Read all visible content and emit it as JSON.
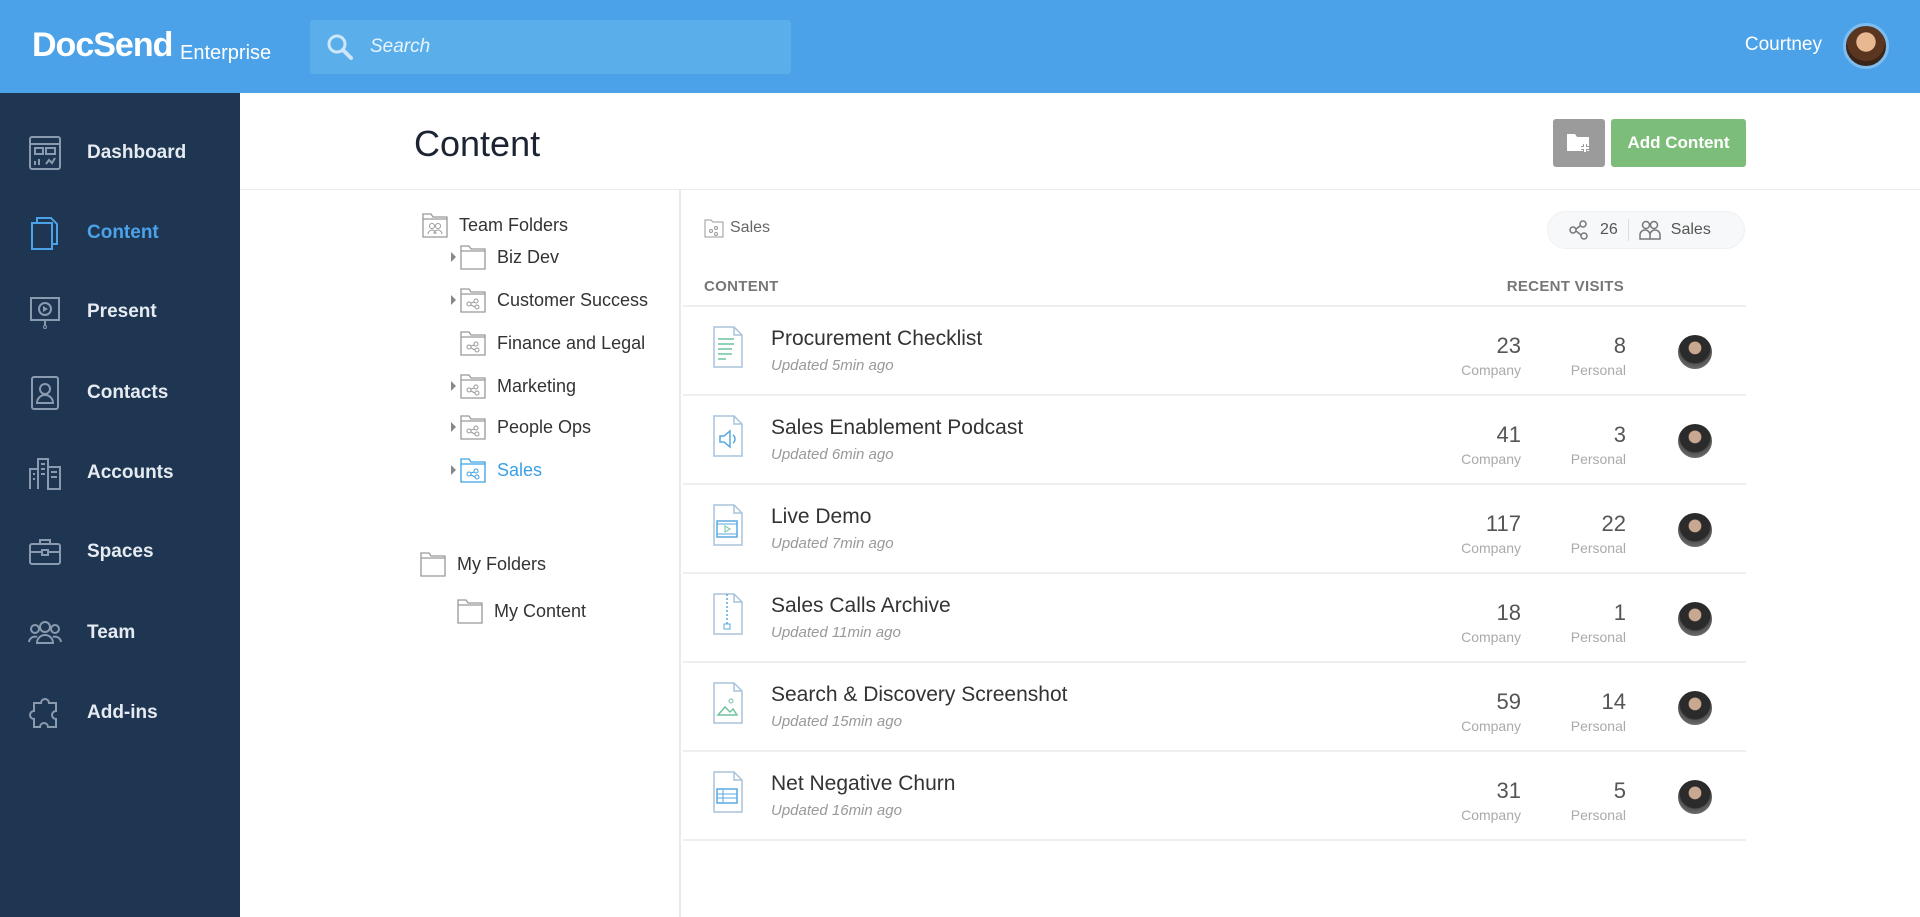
{
  "header": {
    "logo": "DocSend",
    "logo_sub": "Enterprise",
    "search_placeholder": "Search",
    "user": "Courtney"
  },
  "colors": {
    "header": "#4ba2e8",
    "sidebar": "#1f3652",
    "active": "#4ba2e8",
    "add_button": "#7dbd7a"
  },
  "sidebar": {
    "items": [
      {
        "label": "Dashboard",
        "icon": "dashboard-icon"
      },
      {
        "label": "Content",
        "icon": "content-icon",
        "active": true
      },
      {
        "label": "Present",
        "icon": "present-icon"
      },
      {
        "label": "Contacts",
        "icon": "contacts-icon"
      },
      {
        "label": "Accounts",
        "icon": "accounts-icon"
      },
      {
        "label": "Spaces",
        "icon": "spaces-icon"
      },
      {
        "label": "Team",
        "icon": "team-icon"
      },
      {
        "label": "Add-ins",
        "icon": "add-ins-icon"
      }
    ]
  },
  "main": {
    "title": "Content",
    "add_content": "Add Content"
  },
  "tree": {
    "team_folders": "Team Folders",
    "team_items": [
      {
        "label": "Biz Dev",
        "expandable": true,
        "shared": false
      },
      {
        "label": "Customer Success",
        "expandable": true,
        "shared": true
      },
      {
        "label": "Finance and Legal",
        "expandable": false,
        "shared": true
      },
      {
        "label": "Marketing",
        "expandable": true,
        "shared": true
      },
      {
        "label": "People Ops",
        "expandable": true,
        "shared": true
      },
      {
        "label": "Sales",
        "expandable": true,
        "shared": true,
        "active": true
      }
    ],
    "my_folders": "My Folders",
    "my_items": [
      {
        "label": "My Content"
      }
    ]
  },
  "content": {
    "breadcrumb": "Sales",
    "share_count": "26",
    "group": "Sales",
    "col_content": "CONTENT",
    "col_visits": "RECENT VISITS",
    "company_label": "Company",
    "personal_label": "Personal",
    "rows": [
      {
        "title": "Procurement Checklist",
        "updated": "Updated 5min ago",
        "company": "23",
        "personal": "8",
        "icon": "document-icon"
      },
      {
        "title": "Sales Enablement Podcast",
        "updated": "Updated 6min ago",
        "company": "41",
        "personal": "3",
        "icon": "audio-file-icon"
      },
      {
        "title": "Live Demo",
        "updated": "Updated 7min ago",
        "company": "117",
        "personal": "22",
        "icon": "video-file-icon"
      },
      {
        "title": "Sales Calls Archive",
        "updated": "Updated 11min ago",
        "company": "18",
        "personal": "1",
        "icon": "zip-file-icon"
      },
      {
        "title": "Search & Discovery Screenshot",
        "updated": "Updated 15min ago",
        "company": "59",
        "personal": "14",
        "icon": "image-file-icon"
      },
      {
        "title": "Net Negative Churn",
        "updated": "Updated 16min ago",
        "company": "31",
        "personal": "5",
        "icon": "spreadsheet-file-icon"
      }
    ]
  }
}
